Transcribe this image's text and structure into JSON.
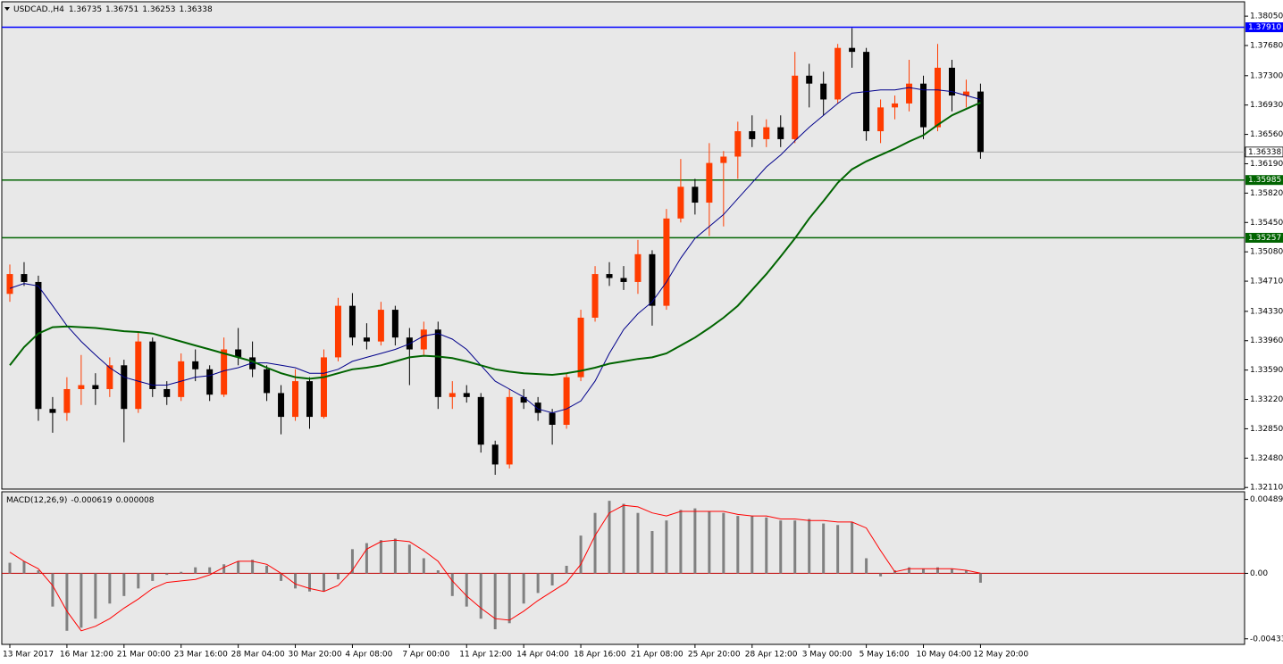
{
  "chart_data": [
    {
      "type": "candlestick",
      "title": "USDCAD.,H4",
      "header_ohlc": [
        1.36735,
        1.36751,
        1.36253,
        1.36338
      ],
      "up_color": "#ff3c00",
      "down_color": "#000000",
      "xlim": [
        -0.5,
        86.5
      ],
      "ylim": [
        1.3209,
        1.3822
      ],
      "yticks": [
        {
          "value": 1.3805,
          "label": "1.38050"
        },
        {
          "value": 1.3768,
          "label": "1.37680"
        },
        {
          "value": 1.373,
          "label": "1.37300"
        },
        {
          "value": 1.3693,
          "label": "1.36930"
        },
        {
          "value": 1.3656,
          "label": "1.36560"
        },
        {
          "value": 1.3619,
          "label": "1.36190"
        },
        {
          "value": 1.3582,
          "label": "1.35820"
        },
        {
          "value": 1.3545,
          "label": "1.35450"
        },
        {
          "value": 1.3508,
          "label": "1.35080"
        },
        {
          "value": 1.3471,
          "label": "1.34710"
        },
        {
          "value": 1.3433,
          "label": "1.34330"
        },
        {
          "value": 1.3396,
          "label": "1.33960"
        },
        {
          "value": 1.3359,
          "label": "1.33590"
        },
        {
          "value": 1.3322,
          "label": "1.33220"
        },
        {
          "value": 1.3285,
          "label": "1.32850"
        },
        {
          "value": 1.3248,
          "label": "1.32480"
        },
        {
          "value": 1.3211,
          "label": "1.32110"
        }
      ],
      "levels": [
        {
          "value": 1.3791,
          "label": "1.37910",
          "color": "#0000ff"
        },
        {
          "value": 1.35985,
          "label": "1.35985",
          "color": "#006400"
        },
        {
          "value": 1.35257,
          "label": "1.35257",
          "color": "#006400"
        }
      ],
      "current_price": {
        "value": 1.36338,
        "label": "1.36338"
      },
      "open": [
        1.3455,
        1.348,
        1.347,
        1.331,
        1.3305,
        1.3335,
        1.334,
        1.3335,
        1.3365,
        1.331,
        1.3395,
        1.3335,
        1.3325,
        1.337,
        1.336,
        1.3328,
        1.3385,
        1.3375,
        1.336,
        1.333,
        1.33,
        1.3345,
        1.33,
        1.3375,
        1.344,
        1.34,
        1.3395,
        1.3435,
        1.34,
        1.3385,
        1.341,
        1.3325,
        1.333,
        1.3325,
        1.3265,
        1.324,
        1.3325,
        1.3318,
        1.3305,
        1.329,
        1.335,
        1.3425,
        1.348,
        1.3475,
        1.347,
        1.3505,
        1.344,
        1.355,
        1.359,
        1.357,
        1.362,
        1.3628,
        1.366,
        1.365,
        1.3665,
        1.365,
        1.373,
        1.372,
        1.37,
        1.3765,
        1.376,
        1.366,
        1.369,
        1.3695,
        1.372,
        1.3665,
        1.374,
        1.3705,
        1.371
      ],
      "high": [
        1.3492,
        1.3495,
        1.3478,
        1.3325,
        1.335,
        1.3378,
        1.3355,
        1.3375,
        1.3372,
        1.3408,
        1.34,
        1.3345,
        1.338,
        1.3385,
        1.3365,
        1.34,
        1.3412,
        1.3395,
        1.3365,
        1.334,
        1.336,
        1.335,
        1.3385,
        1.345,
        1.3456,
        1.3418,
        1.3445,
        1.344,
        1.3412,
        1.342,
        1.342,
        1.3345,
        1.334,
        1.333,
        1.327,
        1.3335,
        1.3335,
        1.3325,
        1.331,
        1.3355,
        1.3435,
        1.349,
        1.3495,
        1.349,
        1.3523,
        1.351,
        1.3562,
        1.3625,
        1.36,
        1.3645,
        1.3635,
        1.3672,
        1.368,
        1.3675,
        1.368,
        1.376,
        1.3745,
        1.3735,
        1.377,
        1.379,
        1.3765,
        1.37,
        1.3705,
        1.375,
        1.373,
        1.377,
        1.375,
        1.3725,
        1.372
      ],
      "low": [
        1.3445,
        1.3465,
        1.3295,
        1.328,
        1.3295,
        1.3315,
        1.3315,
        1.3325,
        1.3268,
        1.3305,
        1.3325,
        1.3315,
        1.332,
        1.3345,
        1.332,
        1.3325,
        1.3365,
        1.335,
        1.332,
        1.3278,
        1.3295,
        1.3285,
        1.3298,
        1.337,
        1.339,
        1.3385,
        1.339,
        1.339,
        1.334,
        1.3378,
        1.331,
        1.331,
        1.3318,
        1.3255,
        1.3227,
        1.3235,
        1.331,
        1.3295,
        1.3265,
        1.3285,
        1.3345,
        1.342,
        1.3465,
        1.346,
        1.3455,
        1.3415,
        1.3435,
        1.3545,
        1.3555,
        1.3528,
        1.354,
        1.36,
        1.364,
        1.364,
        1.364,
        1.3645,
        1.369,
        1.368,
        1.3695,
        1.374,
        1.3648,
        1.3645,
        1.3675,
        1.3685,
        1.365,
        1.366,
        1.3685,
        1.369,
        1.36253
      ],
      "close": [
        1.348,
        1.347,
        1.331,
        1.3305,
        1.3335,
        1.334,
        1.3335,
        1.3365,
        1.331,
        1.3395,
        1.3335,
        1.3325,
        1.337,
        1.336,
        1.3328,
        1.3385,
        1.3375,
        1.336,
        1.333,
        1.33,
        1.3345,
        1.33,
        1.3375,
        1.344,
        1.34,
        1.3395,
        1.3435,
        1.34,
        1.3385,
        1.341,
        1.3325,
        1.333,
        1.3325,
        1.3265,
        1.324,
        1.3325,
        1.3318,
        1.3305,
        1.329,
        1.335,
        1.3425,
        1.348,
        1.3475,
        1.347,
        1.3505,
        1.344,
        1.355,
        1.359,
        1.357,
        1.362,
        1.3628,
        1.366,
        1.365,
        1.3665,
        1.365,
        1.373,
        1.372,
        1.37,
        1.3765,
        1.376,
        1.366,
        1.369,
        1.3695,
        1.372,
        1.3665,
        1.374,
        1.3705,
        1.371,
        1.36338
      ],
      "series": [
        {
          "color": "#00008b",
          "width": 1,
          "values": [
            1.3462,
            1.3468,
            1.3465,
            1.344,
            1.3415,
            1.3395,
            1.3378,
            1.3362,
            1.335,
            1.3345,
            1.334,
            1.334,
            1.3345,
            1.335,
            1.3352,
            1.3358,
            1.3362,
            1.3368,
            1.3368,
            1.3365,
            1.3362,
            1.3355,
            1.3355,
            1.336,
            1.337,
            1.3375,
            1.338,
            1.3385,
            1.3392,
            1.3402,
            1.3405,
            1.3398,
            1.3385,
            1.3365,
            1.3345,
            1.3335,
            1.3325,
            1.331,
            1.3305,
            1.331,
            1.332,
            1.3345,
            1.338,
            1.341,
            1.343,
            1.3445,
            1.347,
            1.35,
            1.3525,
            1.354,
            1.3555,
            1.3575,
            1.3595,
            1.3615,
            1.363,
            1.3648,
            1.3665,
            1.368,
            1.3695,
            1.3708,
            1.371,
            1.3712,
            1.3712,
            1.3715,
            1.3712,
            1.3712,
            1.371,
            1.3705,
            1.37
          ]
        },
        {
          "color": "#006400",
          "width": 2,
          "values": [
            1.3365,
            1.3388,
            1.3405,
            1.3413,
            1.3414,
            1.3413,
            1.3412,
            1.341,
            1.3408,
            1.3407,
            1.3405,
            1.34,
            1.3395,
            1.339,
            1.3385,
            1.338,
            1.3375,
            1.337,
            1.3362,
            1.3355,
            1.335,
            1.3348,
            1.335,
            1.3355,
            1.336,
            1.3362,
            1.3365,
            1.337,
            1.3375,
            1.3377,
            1.3376,
            1.3374,
            1.337,
            1.3365,
            1.336,
            1.3357,
            1.3355,
            1.3354,
            1.3353,
            1.3355,
            1.3358,
            1.3362,
            1.3367,
            1.337,
            1.3373,
            1.3375,
            1.338,
            1.339,
            1.34,
            1.3412,
            1.3425,
            1.344,
            1.346,
            1.348,
            1.3502,
            1.3525,
            1.355,
            1.3572,
            1.3595,
            1.3612,
            1.3622,
            1.363,
            1.3638,
            1.3647,
            1.3655,
            1.3668,
            1.368,
            1.3688,
            1.3696
          ]
        }
      ]
    },
    {
      "type": "macd",
      "title": "MACD(12,26,9)",
      "last_values": [
        -0.000619,
        8e-06
      ],
      "xlim": [
        -0.5,
        86.5
      ],
      "ylim": [
        -0.0047,
        0.0054
      ],
      "yticks": [
        0.004891,
        {
          "value": 0,
          "label": "0.00"
        },
        -0.004332
      ],
      "xticks": [
        {
          "value": 0,
          "label": "13 Mar 2017"
        },
        {
          "value": 4,
          "label": "16 Mar 12:00"
        },
        {
          "value": 8,
          "label": "21 Mar 00:00"
        },
        {
          "value": 12,
          "label": "23 Mar 16:00"
        },
        {
          "value": 16,
          "label": "28 Mar 04:00"
        },
        {
          "value": 20,
          "label": "30 Mar 20:00"
        },
        {
          "value": 24,
          "label": "4 Apr 08:00"
        },
        {
          "value": 28,
          "label": "7 Apr 00:00"
        },
        {
          "value": 32,
          "label": "11 Apr 12:00"
        },
        {
          "value": 36,
          "label": "14 Apr 04:00"
        },
        {
          "value": 40,
          "label": "18 Apr 16:00"
        },
        {
          "value": 44,
          "label": "21 Apr 08:00"
        },
        {
          "value": 48,
          "label": "25 Apr 20:00"
        },
        {
          "value": 52,
          "label": "28 Apr 12:00"
        },
        {
          "value": 56,
          "label": "3 May 00:00"
        },
        {
          "value": 60,
          "label": "5 May 16:00"
        },
        {
          "value": 64,
          "label": "10 May 04:00"
        },
        {
          "value": 68,
          "label": "12 May 20:00"
        }
      ],
      "histogram": {
        "color": "#808080",
        "values": [
          0.0007,
          0.0008,
          0.0002,
          -0.0022,
          -0.0038,
          -0.0036,
          -0.003,
          -0.002,
          -0.0015,
          -0.001,
          -0.0005,
          -0.0001,
          0.0001,
          0.0004,
          0.0004,
          0.0006,
          0.0008,
          0.0009,
          0.0005,
          -0.0005,
          -0.001,
          -0.0012,
          -0.0012,
          -0.0004,
          0.0016,
          0.002,
          0.0022,
          0.0023,
          0.0019,
          0.001,
          0.0002,
          -0.0015,
          -0.0022,
          -0.003,
          -0.0037,
          -0.0033,
          -0.002,
          -0.0013,
          -0.0008,
          0.0005,
          0.0025,
          0.004,
          0.0048,
          0.0046,
          0.004,
          0.0028,
          0.0035,
          0.0042,
          0.0043,
          0.0041,
          0.004,
          0.0038,
          0.0038,
          0.0037,
          0.0035,
          0.0035,
          0.0036,
          0.0033,
          0.0032,
          0.0034,
          0.001,
          -0.0002,
          0.0002,
          0.0004,
          0.0003,
          0.0004,
          0.0003,
          0.0002,
          -0.000619
        ]
      },
      "signal": {
        "color": "#ff0000",
        "values": [
          0.0014,
          0.0008,
          0.0003,
          -0.0008,
          -0.0025,
          -0.0038,
          -0.0035,
          -0.003,
          -0.0023,
          -0.0017,
          -0.001,
          -0.0006,
          -0.0005,
          -0.0004,
          -0.0001,
          0.0004,
          0.0008,
          0.0008,
          0.0006,
          0.0,
          -0.0007,
          -0.001,
          -0.0012,
          -0.0008,
          0.0002,
          0.0016,
          0.0021,
          0.0022,
          0.0021,
          0.0015,
          0.0008,
          -0.0005,
          -0.0015,
          -0.0023,
          -0.003,
          -0.0031,
          -0.0025,
          -0.0018,
          -0.0012,
          -0.0006,
          0.0006,
          0.0025,
          0.004,
          0.0045,
          0.0044,
          0.004,
          0.0038,
          0.0041,
          0.0041,
          0.0041,
          0.0041,
          0.0039,
          0.0038,
          0.0038,
          0.0036,
          0.0036,
          0.0035,
          0.0035,
          0.0034,
          0.0034,
          0.003,
          0.0015,
          0.0001,
          0.0003,
          0.0003,
          0.0003,
          0.0003,
          0.0002,
          8e-06
        ]
      }
    }
  ]
}
